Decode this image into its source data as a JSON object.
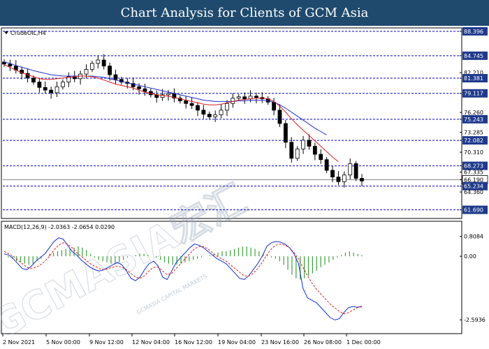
{
  "banner": {
    "title": "Chart Analysis for Clients of GCM Asia"
  },
  "watermark": "GCMASIA宏汇",
  "watermark_small": "GCMASIA CAPITAL MARKETS",
  "chart_data": [
    {
      "type": "candlestick",
      "symbol": "CrudeOIL,H4",
      "ylim": [
        60.5,
        88.8
      ],
      "y_ticks": [
        {
          "label": "88.396",
          "value": 88.396,
          "highlight": true
        },
        {
          "label": "84.745",
          "value": 84.745,
          "highlight": true
        },
        {
          "label": "82.210",
          "value": 82.21,
          "highlight": false
        },
        {
          "label": "81.381",
          "value": 81.381,
          "highlight": true
        },
        {
          "label": "79.117",
          "value": 79.117,
          "highlight": true
        },
        {
          "label": "76.260",
          "value": 76.26,
          "highlight": false
        },
        {
          "label": "75.243",
          "value": 75.243,
          "highlight": true
        },
        {
          "label": "73.285",
          "value": 73.285,
          "highlight": false
        },
        {
          "label": "72.082",
          "value": 72.082,
          "highlight": true
        },
        {
          "label": "70.310",
          "value": 70.31,
          "highlight": false
        },
        {
          "label": "68.273",
          "value": 68.273,
          "highlight": true
        },
        {
          "label": "67.335",
          "value": 67.335,
          "highlight": false
        },
        {
          "label": "66.190",
          "value": 66.19,
          "highlight": false,
          "current": true
        },
        {
          "label": "65.234",
          "value": 65.234,
          "highlight": true
        },
        {
          "label": "64.360",
          "value": 64.36,
          "highlight": false
        },
        {
          "label": "61.690",
          "value": 61.69,
          "highlight": true
        }
      ],
      "levels": [
        88.396,
        84.745,
        81.381,
        79.117,
        75.243,
        72.082,
        68.273,
        65.234,
        61.69
      ],
      "current_price": 66.19,
      "close_path": [
        83.5,
        83.2,
        82.6,
        82.1,
        81.4,
        80.8,
        80.0,
        79.6,
        79.2,
        80.1,
        80.8,
        81.6,
        81.3,
        82.0,
        82.7,
        83.6,
        84.1,
        83.2,
        81.9,
        81.2,
        80.8,
        80.6,
        80.1,
        79.8,
        79.4,
        78.9,
        78.5,
        78.9,
        79.1,
        78.4,
        78.0,
        77.6,
        77.3,
        76.6,
        76.0,
        75.6,
        75.9,
        76.6,
        77.6,
        78.4,
        78.6,
        78.3,
        78.7,
        78.5,
        78.3,
        77.8,
        76.6,
        74.6,
        71.8,
        69.4,
        70.8,
        72.1,
        71.2,
        70.0,
        69.2,
        67.6,
        66.6,
        65.9,
        66.9,
        68.6,
        66.4,
        66.0
      ],
      "ma_red": [
        83.4,
        83.0,
        82.6,
        82.2,
        81.9,
        81.6,
        81.3,
        81.2,
        81.2,
        81.3,
        81.4,
        81.5,
        81.6,
        81.7,
        81.7,
        81.6,
        81.4,
        81.1,
        80.8,
        80.5,
        80.3,
        80.1,
        79.9,
        79.6,
        79.3,
        79.1,
        78.9,
        78.8,
        78.7,
        78.5,
        78.3,
        78.1,
        77.9,
        77.7,
        77.5,
        77.4,
        77.4,
        77.5,
        77.7,
        77.9,
        78.1,
        78.2,
        78.3,
        78.4,
        78.4,
        78.3,
        77.9,
        77.2,
        76.3,
        75.3,
        74.4,
        73.6,
        72.8,
        72.0,
        71.2,
        70.4,
        69.6,
        68.9
      ],
      "ma_blue": [
        83.8,
        83.6,
        83.3,
        83.0,
        82.8,
        82.5,
        82.3,
        82.1,
        81.9,
        81.8,
        81.7,
        81.7,
        81.7,
        81.7,
        81.7,
        81.7,
        81.6,
        81.5,
        81.3,
        81.1,
        80.9,
        80.7,
        80.5,
        80.3,
        80.1,
        79.9,
        79.7,
        79.5,
        79.3,
        79.1,
        78.9,
        78.7,
        78.5,
        78.3,
        78.1,
        78.0,
        77.9,
        77.9,
        77.9,
        77.9,
        78.0,
        78.0,
        78.1,
        78.1,
        78.1,
        78.0,
        77.8,
        77.4,
        76.9,
        76.3,
        75.7,
        75.1,
        74.5,
        73.9,
        73.4,
        72.9
      ]
    },
    {
      "type": "macd",
      "label": "MACD(12,26,9) -2.0363 -2.0654 0.0290",
      "ylim": [
        -3.1,
        1.0
      ],
      "y_ticks": [
        {
          "label": "0.8084",
          "value": 0.8084
        },
        {
          "label": "0.00",
          "value": 0.0
        },
        {
          "label": "-2.5936",
          "value": -2.5936
        }
      ],
      "histogram": [
        0.0,
        -0.05,
        -0.1,
        -0.2,
        -0.25,
        -0.3,
        -0.35,
        -0.3,
        -0.2,
        -0.1,
        0.0,
        0.1,
        0.15,
        0.2,
        0.25,
        0.3,
        0.3,
        0.35,
        0.4,
        0.35,
        0.25,
        0.1,
        -0.05,
        -0.15,
        -0.2,
        -0.25,
        -0.3,
        -0.3,
        -0.25,
        -0.15,
        -0.05,
        0.0,
        0.05,
        0.1,
        0.1,
        0.05,
        0.0,
        -0.05,
        -0.15,
        -0.25,
        -0.3,
        -0.35,
        -0.35,
        -0.3,
        -0.25,
        -0.2,
        -0.15,
        -0.1,
        -0.05,
        0.0,
        0.05,
        0.1,
        0.15,
        0.2,
        0.2,
        0.25,
        0.3,
        0.35,
        0.4,
        0.4,
        0.35,
        0.3,
        0.2,
        0.1,
        0.05,
        -0.05,
        -0.1,
        -0.2,
        -0.35,
        -0.55,
        -0.75,
        -0.9,
        -0.95,
        -0.9,
        -0.8,
        -0.7,
        -0.6,
        -0.45,
        -0.35,
        -0.25,
        -0.15,
        -0.05,
        0.05,
        0.15,
        0.2,
        0.15,
        0.1,
        0.05
      ],
      "macd_line": [
        0.1,
        0.05,
        -0.1,
        -0.3,
        -0.5,
        -0.55,
        -0.4,
        -0.2,
        -0.05,
        0.1,
        0.35,
        0.6,
        0.75,
        0.7,
        0.45,
        0.2,
        0.05,
        -0.15,
        -0.3,
        -0.45,
        -0.55,
        -0.6,
        -0.55,
        -0.45,
        -0.35,
        -0.25,
        -0.35,
        -0.6,
        -0.9,
        -1.0,
        -0.85,
        -0.55,
        -0.3,
        -0.2,
        -0.4,
        -0.85,
        -0.95,
        -0.6,
        -0.25,
        -0.05,
        0.15,
        0.35,
        0.5,
        0.45,
        0.35,
        0.2,
        0.05,
        -0.1,
        -0.2,
        -0.3,
        -0.5,
        -0.7,
        -0.9,
        -0.95,
        -0.8,
        -0.55,
        -0.3,
        0.0,
        0.4,
        0.55,
        0.6,
        0.58,
        0.5,
        0.35,
        0.1,
        -0.3,
        -1.3,
        -1.7,
        -1.8,
        -1.9,
        -2.1,
        -2.3,
        -2.5,
        -2.6,
        -2.55,
        -2.3,
        -2.1,
        -2.05,
        -2.08,
        -2.04
      ],
      "signal_line": [
        0.2,
        0.1,
        0.0,
        -0.15,
        -0.3,
        -0.45,
        -0.5,
        -0.45,
        -0.35,
        -0.2,
        0.0,
        0.25,
        0.45,
        0.55,
        0.5,
        0.35,
        0.15,
        0.0,
        -0.15,
        -0.3,
        -0.4,
        -0.5,
        -0.55,
        -0.5,
        -0.45,
        -0.4,
        -0.45,
        -0.55,
        -0.7,
        -0.85,
        -0.9,
        -0.8,
        -0.6,
        -0.45,
        -0.45,
        -0.6,
        -0.75,
        -0.7,
        -0.5,
        -0.3,
        -0.1,
        0.1,
        0.3,
        0.4,
        0.4,
        0.3,
        0.15,
        0.0,
        -0.1,
        -0.2,
        -0.35,
        -0.5,
        -0.65,
        -0.8,
        -0.8,
        -0.7,
        -0.5,
        -0.25,
        0.05,
        0.3,
        0.45,
        0.5,
        0.45,
        0.35,
        0.15,
        -0.1,
        -0.45,
        -0.8,
        -1.1,
        -1.35,
        -1.55,
        -1.75,
        -1.95,
        -2.1,
        -2.25,
        -2.35,
        -2.3,
        -2.2,
        -2.1,
        -2.06
      ]
    }
  ],
  "x_axis": [
    "2 Nov 2021",
    "5 Nov 00:00",
    "9 Nov 12:00",
    "12 Nov 04:00",
    "16 Nov 12:00",
    "19 Nov 04:00",
    "23 Nov 16:00",
    "26 Nov 08:00",
    "1 Dec 00:00"
  ],
  "colors": {
    "banner": "#1f4a6e",
    "level_line": "#0000cc",
    "highlight_bg": "#1f3a8c",
    "ma_red": "#d62020",
    "ma_blue": "#2030c8",
    "histogram": "#3ca03c",
    "macd_line": "#1030d0",
    "signal_line": "#e02020",
    "candle_up": "#2e8b57",
    "candle_down": "#c0392b",
    "current_line": "#888888"
  }
}
